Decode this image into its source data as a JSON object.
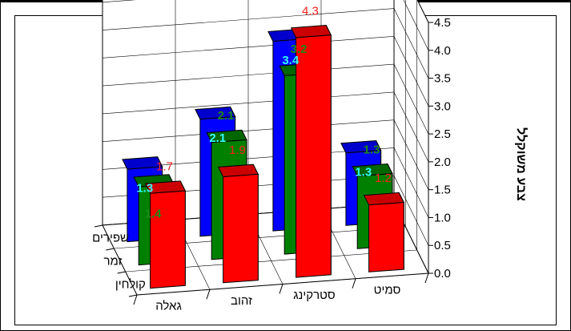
{
  "chart_data": {
    "type": "bar",
    "style": "3d-clustered-columns",
    "categories": [
      "גאלה",
      "זהוב",
      "סטרקינג",
      "סמיט"
    ],
    "series": [
      {
        "name": "קולחין",
        "values": [
          1.7,
          1.9,
          4.3,
          1.2
        ],
        "color": "#ff0000",
        "label_color": "#ff2020",
        "labels": [
          "1.7",
          "1.9",
          "4.3",
          "1.2"
        ]
      },
      {
        "name": "זמר",
        "values": [
          1.4,
          2.1,
          3.2,
          1.3
        ],
        "color": "#008000",
        "label_color": "#1a8a1a",
        "labels": [
          "1.4",
          "2.1",
          "3.2",
          "1.3"
        ]
      },
      {
        "name": "שפירים",
        "values": [
          1.3,
          2.1,
          3.4,
          1.3
        ],
        "color": "#0000ff",
        "label_color": "#33ffff",
        "labels": [
          "1.3",
          "2.1",
          "3.4",
          "1.3"
        ]
      }
    ],
    "ylabel": "צבע משוקלל",
    "ylim": [
      0,
      4.5
    ],
    "yticks": [
      "0.0",
      "0.5",
      "1.0",
      "1.5",
      "2.0",
      "2.5",
      "3.0",
      "3.5",
      "4.0",
      "4.5"
    ],
    "grid": true,
    "legend": "none"
  }
}
